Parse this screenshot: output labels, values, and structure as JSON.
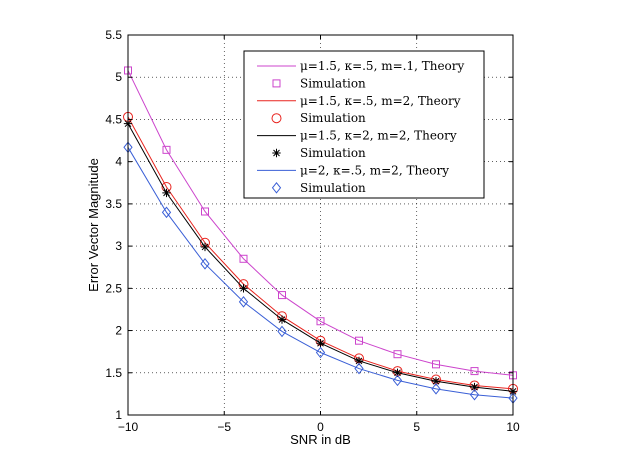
{
  "chart_data": {
    "type": "line",
    "title": "",
    "xlabel": "SNR in dB",
    "ylabel": "Error Vector Magnitude",
    "xlim": [
      -10,
      10
    ],
    "ylim": [
      1,
      5.5
    ],
    "xticks": [
      -10,
      -5,
      0,
      5,
      10
    ],
    "xtick_labels": [
      "−10",
      "−5",
      "0",
      "5",
      "10"
    ],
    "yticks": [
      1,
      1.5,
      2,
      2.5,
      3,
      3.5,
      4,
      4.5,
      5,
      5.5
    ],
    "ytick_labels": [
      "1",
      "1.5",
      "2",
      "2.5",
      "3",
      "3.5",
      "4",
      "4.5",
      "5",
      "5.5"
    ],
    "grid": true,
    "legend_position": "top-right",
    "x": [
      -10,
      -8,
      -6,
      -4,
      -2,
      0,
      2,
      4,
      6,
      8,
      10
    ],
    "series": [
      {
        "name": "μ=1.5, κ=.5, m=.1, Theory",
        "sim_name": "Simulation",
        "color": "#cc44cc",
        "marker": "square",
        "values": [
          5.08,
          4.14,
          3.41,
          2.85,
          2.42,
          2.11,
          1.88,
          1.72,
          1.6,
          1.52,
          1.47
        ]
      },
      {
        "name": "μ=1.5, κ=.5, m=2, Theory",
        "sim_name": "Simulation",
        "color": "#e8231e",
        "marker": "circle",
        "values": [
          4.53,
          3.7,
          3.04,
          2.55,
          2.17,
          1.88,
          1.67,
          1.52,
          1.42,
          1.35,
          1.31
        ]
      },
      {
        "name": "μ=1.5, κ=2, m=2, Theory",
        "sim_name": "Simulation",
        "color": "#000000",
        "marker": "star",
        "values": [
          4.45,
          3.63,
          2.99,
          2.5,
          2.13,
          1.85,
          1.64,
          1.5,
          1.4,
          1.33,
          1.28
        ]
      },
      {
        "name": "μ=2, κ=.5, m=2, Theory",
        "sim_name": "Simulation",
        "color": "#3a5fd6",
        "marker": "diamond",
        "values": [
          4.17,
          3.4,
          2.79,
          2.34,
          1.99,
          1.74,
          1.55,
          1.41,
          1.31,
          1.24,
          1.2
        ]
      }
    ]
  }
}
